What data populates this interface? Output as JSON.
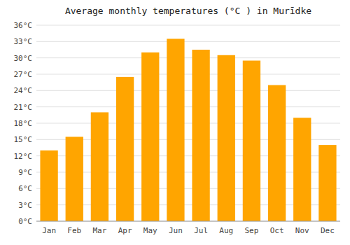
{
  "chart_data": {
    "type": "bar",
    "title": "Average monthly temperatures (°C ) in Murīdke",
    "categories": [
      "Jan",
      "Feb",
      "Mar",
      "Apr",
      "May",
      "Jun",
      "Jul",
      "Aug",
      "Sep",
      "Oct",
      "Nov",
      "Dec"
    ],
    "values": [
      13,
      15.5,
      20,
      26.5,
      31,
      33.5,
      31.5,
      30.5,
      29.5,
      25,
      19,
      14
    ],
    "color": "#FFA500",
    "ylim": [
      0,
      36
    ],
    "yticks": [
      {
        "value": 0,
        "label": "0°C"
      },
      {
        "value": 3,
        "label": "3°C"
      },
      {
        "value": 6,
        "label": "6°C"
      },
      {
        "value": 9,
        "label": "9°C"
      },
      {
        "value": 12,
        "label": "12°C"
      },
      {
        "value": 15,
        "label": "15°C"
      },
      {
        "value": 18,
        "label": "18°C"
      },
      {
        "value": 21,
        "label": "21°C"
      },
      {
        "value": 24,
        "label": "24°C"
      },
      {
        "value": 27,
        "label": "27°C"
      },
      {
        "value": 30,
        "label": "30°C"
      },
      {
        "value": 33,
        "label": "33°C"
      },
      {
        "value": 36,
        "label": "36°C"
      }
    ],
    "grid": true
  }
}
